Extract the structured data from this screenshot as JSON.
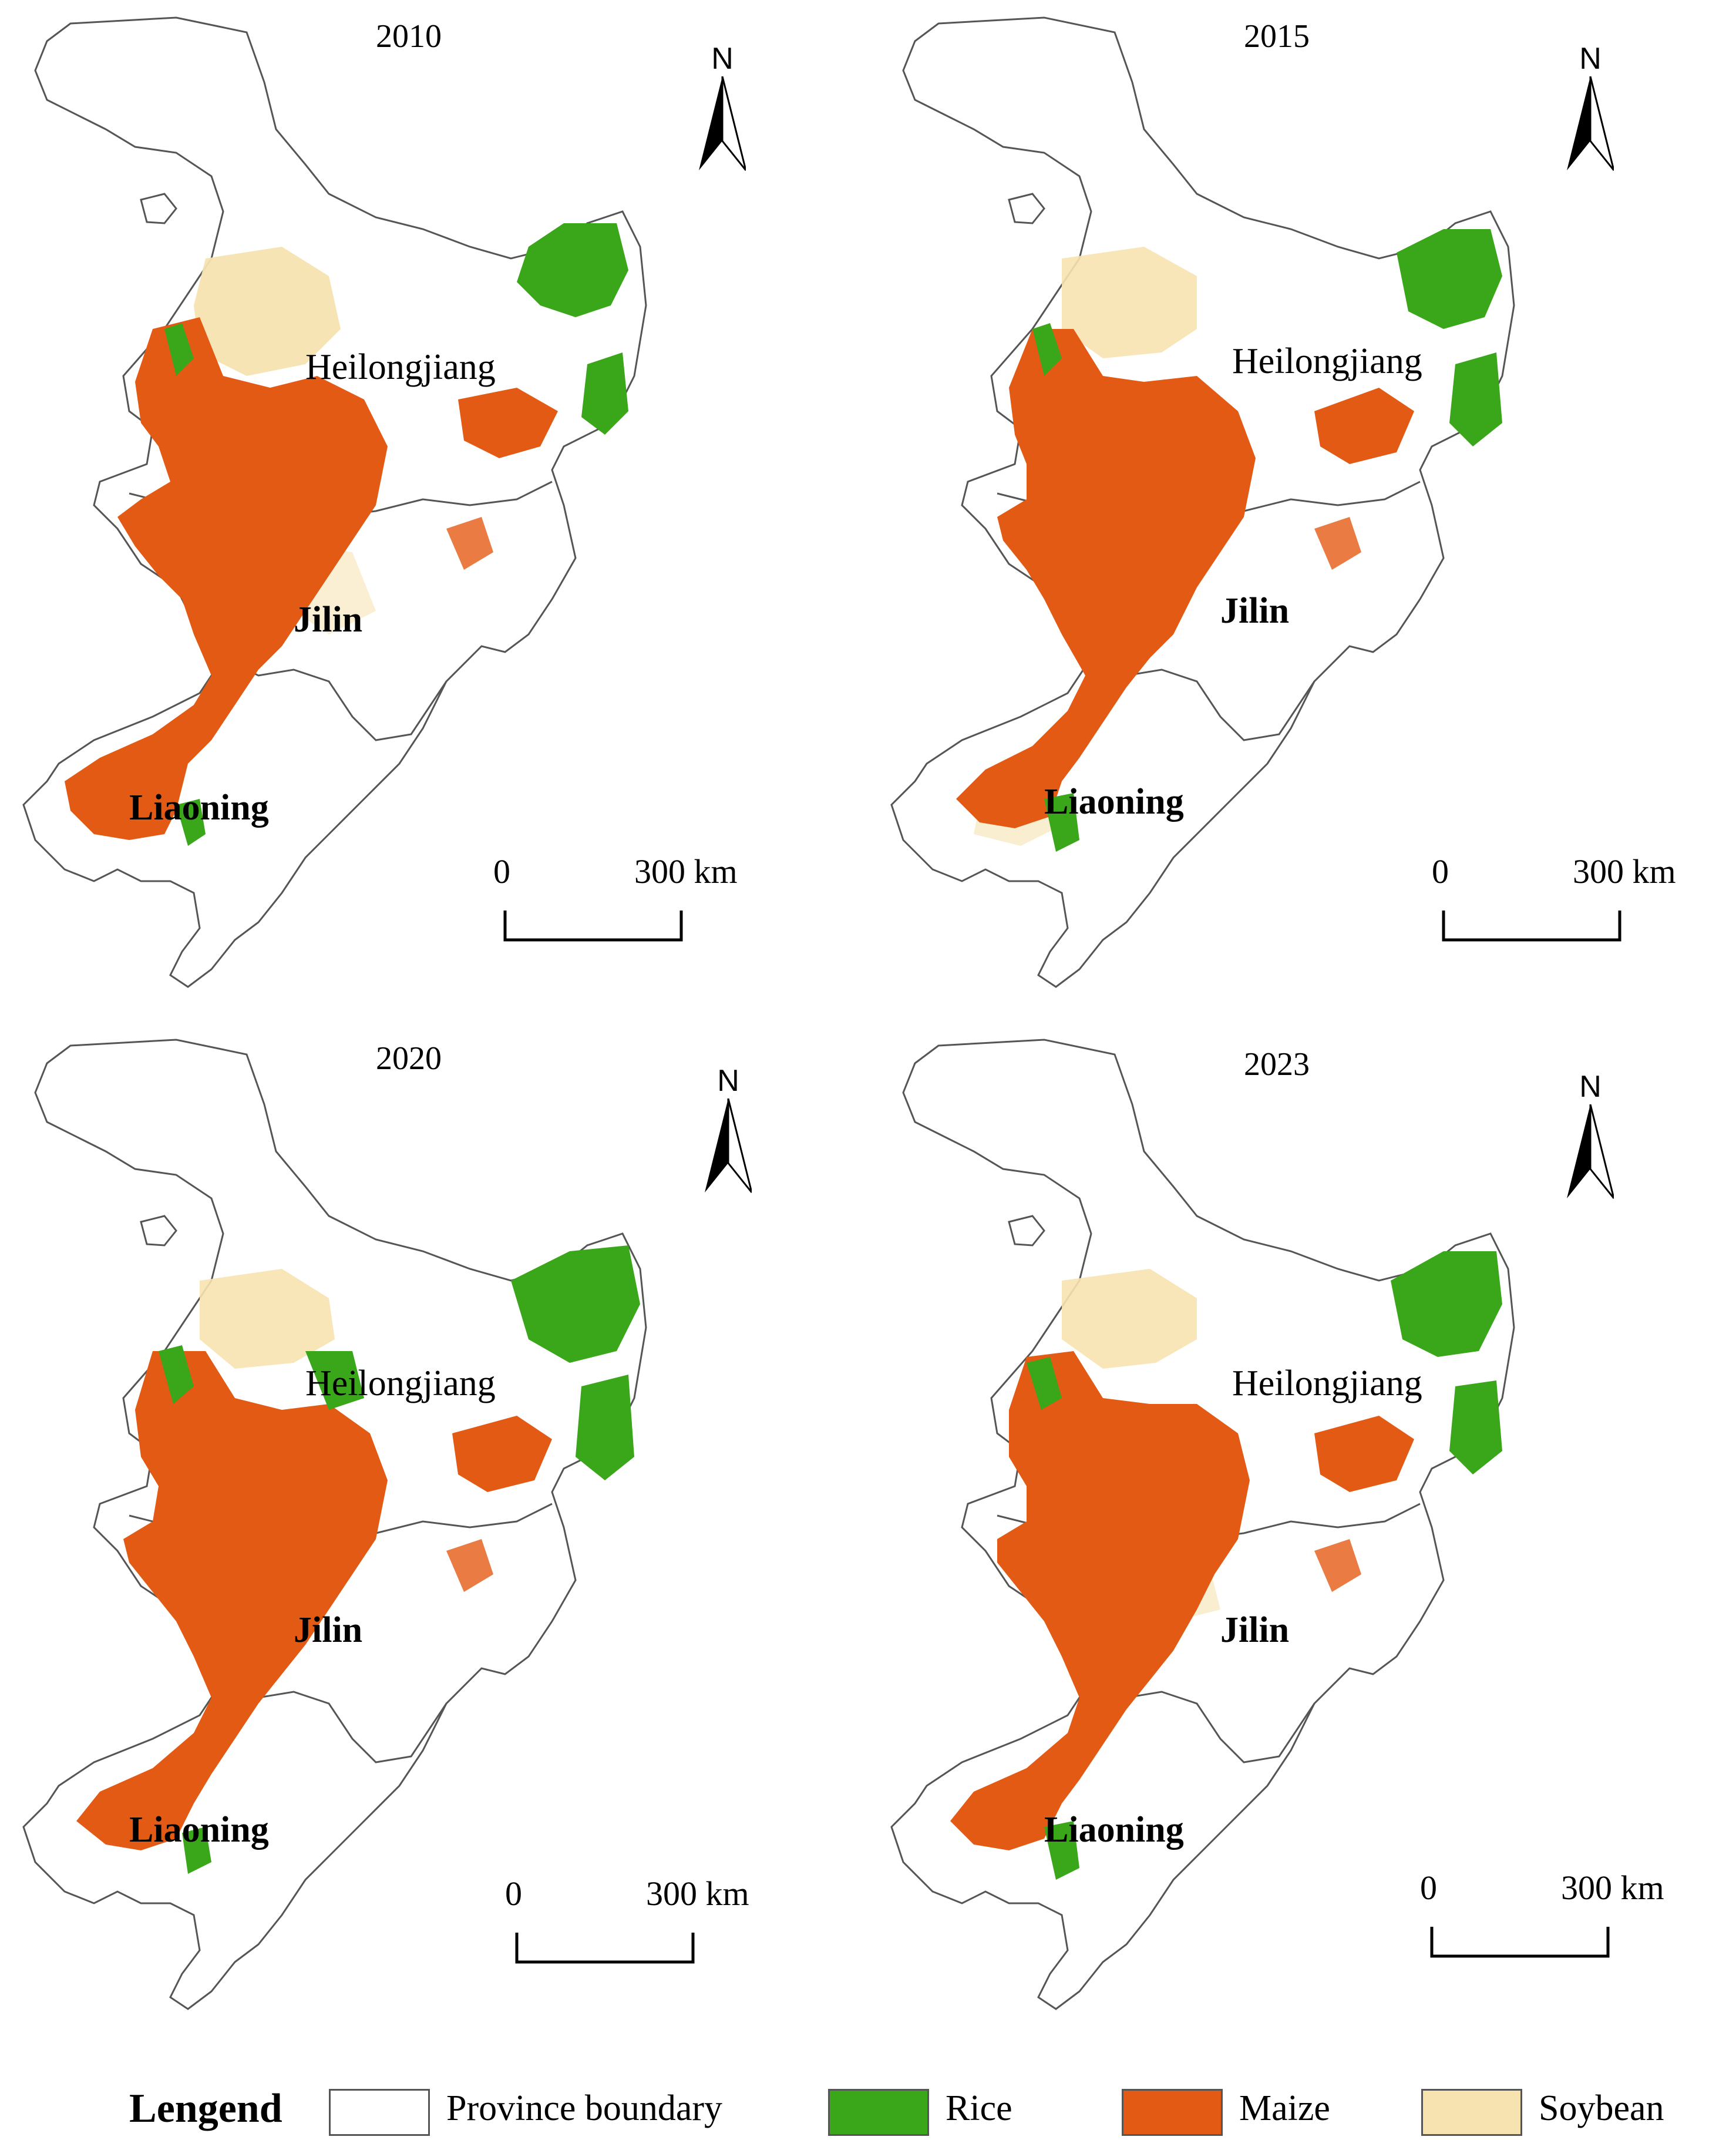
{
  "colors": {
    "rice": "#3aa61a",
    "maize": "#e35a14",
    "soybean": "#f7e3b0",
    "boundary": "#555555",
    "background": "#ffffff"
  },
  "panels": [
    {
      "year": "2010",
      "north": "N",
      "provinces": {
        "heilongjiang": "Heilongjiang",
        "jilin": "Jilin",
        "liaoning": "Liaoning"
      },
      "scale": {
        "start": "0",
        "end": "300 km"
      }
    },
    {
      "year": "2015",
      "north": "N",
      "provinces": {
        "heilongjiang": "Heilongjiang",
        "jilin": "Jilin",
        "liaoning": "Liaoning"
      },
      "scale": {
        "start": "0",
        "end": "300 km"
      }
    },
    {
      "year": "2020",
      "north": "N",
      "provinces": {
        "heilongjiang": "Heilongjiang",
        "jilin": "Jilin",
        "liaoning": "Liaoning"
      },
      "scale": {
        "start": "0",
        "end": "300 km"
      }
    },
    {
      "year": "2023",
      "north": "N",
      "provinces": {
        "heilongjiang": "Heilongjiang",
        "jilin": "Jilin",
        "liaoning": "Liaoning"
      },
      "scale": {
        "start": "0",
        "end": "300 km"
      }
    }
  ],
  "legend": {
    "title": "Lengend",
    "items": [
      {
        "label": "Province boundary",
        "color": "#ffffff"
      },
      {
        "label": "Rice",
        "color": "#3aa61a"
      },
      {
        "label": "Maize",
        "color": "#e35a14"
      },
      {
        "label": "Soybean",
        "color": "#f7e3b0"
      }
    ]
  }
}
